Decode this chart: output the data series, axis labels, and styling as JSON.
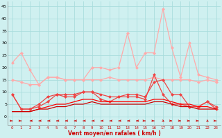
{
  "x": [
    0,
    1,
    2,
    3,
    4,
    5,
    6,
    7,
    8,
    9,
    10,
    11,
    12,
    13,
    14,
    15,
    16,
    17,
    18,
    19,
    20,
    21,
    22,
    23
  ],
  "line1": [
    22,
    26,
    19,
    13,
    16,
    16,
    15,
    15,
    15,
    20,
    20,
    19,
    20,
    34,
    20,
    26,
    26,
    44,
    28,
    16,
    30,
    17,
    16,
    15
  ],
  "line2": [
    15,
    14,
    13,
    13,
    16,
    16,
    15,
    15,
    15,
    15,
    15,
    16,
    15,
    15,
    15,
    15,
    16,
    15,
    15,
    15,
    15,
    14,
    15,
    14
  ],
  "line3": [
    9,
    3,
    3,
    4,
    6,
    9,
    8,
    8,
    10,
    10,
    7,
    6,
    8,
    8,
    8,
    7,
    17,
    9,
    5,
    5,
    4,
    4,
    6,
    3
  ],
  "line4": [
    2,
    2,
    2,
    3,
    4,
    5,
    5,
    6,
    7,
    7,
    6,
    6,
    6,
    6,
    6,
    6,
    7,
    7,
    6,
    5,
    5,
    4,
    4,
    3
  ],
  "line5": [
    2,
    2,
    2,
    3,
    3,
    4,
    4,
    5,
    5,
    6,
    5,
    5,
    5,
    5,
    5,
    5,
    6,
    6,
    5,
    4,
    4,
    3,
    3,
    3
  ],
  "line6": [
    9,
    3,
    3,
    5,
    8,
    9,
    9,
    9,
    10,
    10,
    9,
    8,
    8,
    9,
    9,
    8,
    14,
    15,
    9,
    9,
    4,
    4,
    6,
    4
  ],
  "bg_color": "#cff0f0",
  "grid_color": "#aadddd",
  "color_light_pink": "#ffaaaa",
  "color_med_red": "#ee4444",
  "color_bright_red": "#ff0000",
  "color_dark_red": "#cc0000",
  "xlabel": "Vent moyen/en rafales ( km/h )",
  "yticks": [
    0,
    5,
    10,
    15,
    20,
    25,
    30,
    35,
    40,
    45
  ],
  "ylim": [
    0,
    47
  ],
  "arrow_dirs": [
    1,
    1,
    -1,
    -1,
    -1,
    -1,
    -1,
    -1,
    -1,
    -1,
    -1,
    -1,
    -1,
    -1,
    -1,
    1,
    1,
    0,
    1,
    1,
    1,
    1,
    0,
    1
  ]
}
